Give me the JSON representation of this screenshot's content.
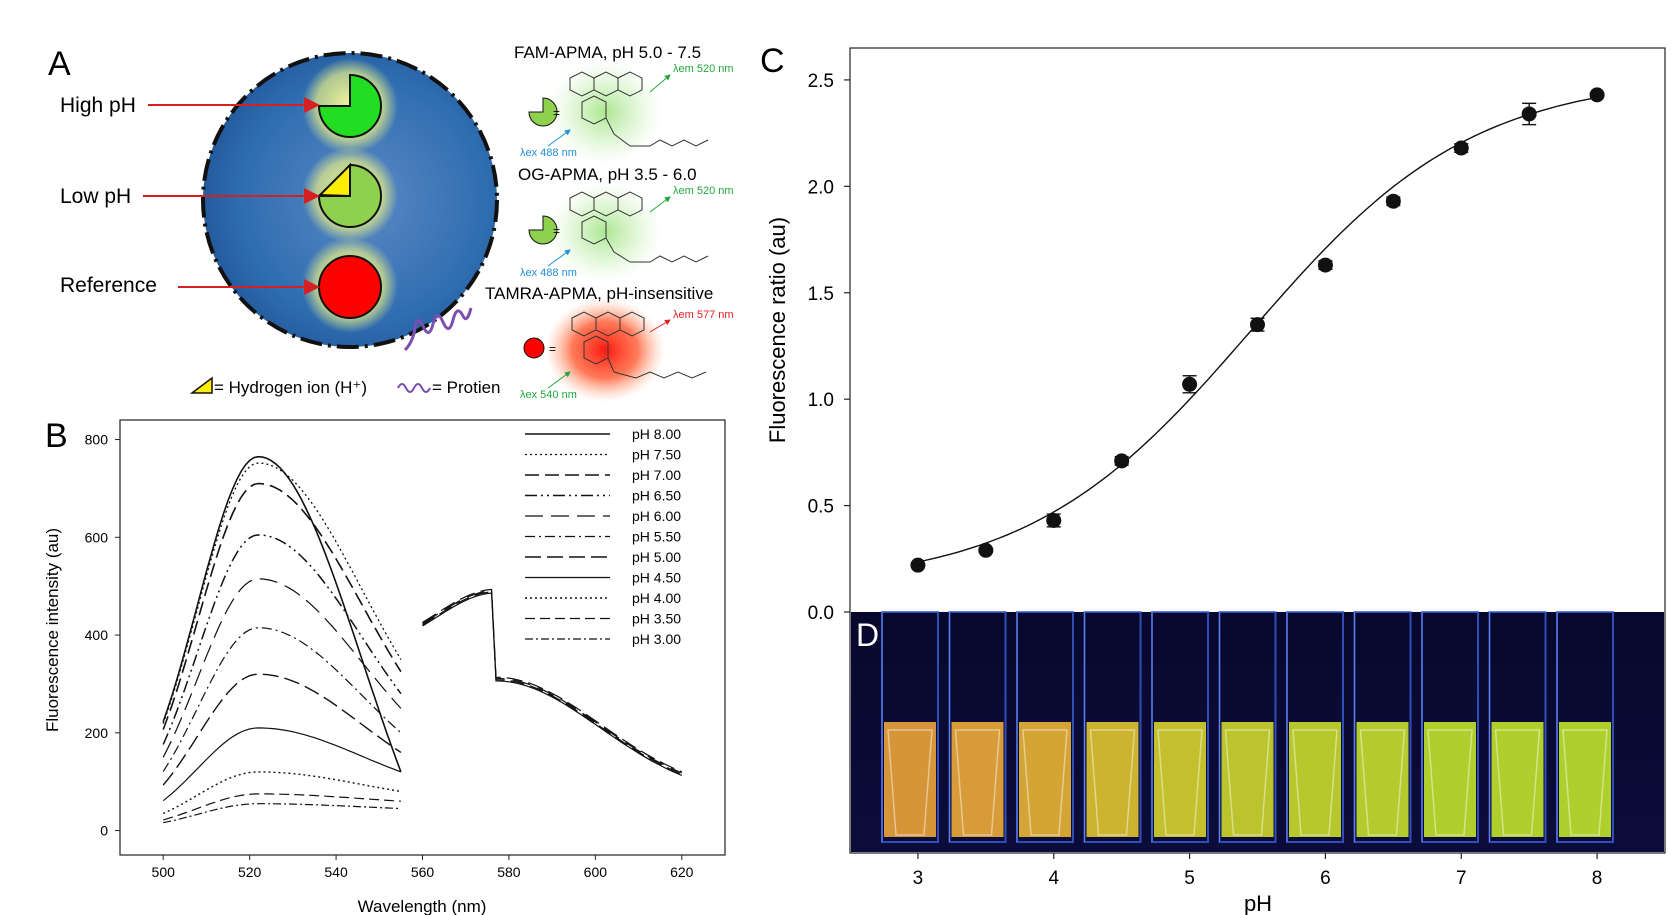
{
  "panel_a": {
    "label": "A",
    "labels": {
      "high": "High pH",
      "low": "Low pH",
      "ref": "Reference"
    },
    "legend": {
      "h_ion": "= Hydrogen ion (H⁺)",
      "protein": "= Protien"
    },
    "probes": [
      {
        "title": "FAM-APMA, pH 5.0 - 7.5",
        "em": "λem 520 nm",
        "ex": "λex 488 nm"
      },
      {
        "title": "OG-APMA, pH 3.5 - 6.0",
        "em": "λem 520 nm",
        "ex": "λex 488 nm"
      },
      {
        "title": "TAMRA-APMA, pH-insensitive",
        "em": "λem 577 nm",
        "ex": "λex 540 nm"
      }
    ],
    "colors": {
      "sphere": "#2f6db0",
      "green": "#22dd22",
      "light_green": "#8fd14f",
      "red": "#ff0000",
      "yellow": "#ffee00",
      "glow": "#e8f08a"
    }
  },
  "chart_data": [
    {
      "panel": "B",
      "type": "line",
      "xlabel": "Wavelength (nm)",
      "ylabel": "Fluorescence intensity (au)",
      "xlim": [
        490,
        630
      ],
      "ylim": [
        -50,
        840
      ],
      "xticks": [
        500,
        520,
        540,
        560,
        580,
        600,
        620
      ],
      "yticks": [
        0,
        200,
        400,
        600,
        800
      ],
      "legend_position": "top-right",
      "series": [
        {
          "name": "pH 8.00",
          "peak": 765,
          "end": 120
        },
        {
          "name": "pH 7.50",
          "peak": 752,
          "end": 350
        },
        {
          "name": "pH 7.00",
          "peak": 710,
          "end": 325
        },
        {
          "name": "pH 6.50",
          "peak": 605,
          "end": 280
        },
        {
          "name": "pH 6.00",
          "peak": 515,
          "end": 250
        },
        {
          "name": "pH 5.50",
          "peak": 415,
          "end": 200
        },
        {
          "name": "pH 5.00",
          "peak": 320,
          "end": 160
        },
        {
          "name": "pH 4.50",
          "peak": 210,
          "end": 120
        },
        {
          "name": "pH 4.00",
          "peak": 120,
          "end": 80
        },
        {
          "name": "pH 3.50",
          "peak": 75,
          "end": 60
        },
        {
          "name": "pH 3.00",
          "peak": 55,
          "end": 45
        }
      ],
      "reference_band": {
        "x_start": 560,
        "x_end": 620,
        "peak_x": 577,
        "peak_y": 310,
        "end_y": 68
      }
    },
    {
      "panel": "C",
      "type": "scatter",
      "xlabel": "pH",
      "ylabel": "Fluorescence ratio (au)",
      "xlim": [
        2.5,
        8.5
      ],
      "ylim": [
        0.0,
        2.65
      ],
      "xticks": [
        3,
        4,
        5,
        6,
        7,
        8
      ],
      "yticks": [
        0.0,
        0.5,
        1.0,
        1.5,
        2.0,
        2.5
      ],
      "x": [
        3.0,
        3.5,
        4.0,
        4.5,
        5.0,
        5.5,
        6.0,
        6.5,
        7.0,
        7.5,
        8.0
      ],
      "y": [
        0.22,
        0.29,
        0.43,
        0.71,
        1.07,
        1.35,
        1.63,
        1.93,
        2.18,
        2.34,
        2.43
      ],
      "err": [
        0.01,
        0.01,
        0.03,
        0.02,
        0.04,
        0.03,
        0.02,
        0.02,
        0.02,
        0.05,
        0.01
      ],
      "fit": true
    }
  ],
  "panel_b_label": "B",
  "panel_c_label": "C",
  "panel_d": {
    "label": "D",
    "cuvette_count": 11,
    "liquid_colors": [
      "#e8a23a",
      "#e9a838",
      "#e6b235",
      "#dcc330",
      "#d4cf2d",
      "#cbd42c",
      "#c6d92b",
      "#c2dc2b",
      "#c0df2b",
      "#bfe02b",
      "#bee12b"
    ]
  }
}
